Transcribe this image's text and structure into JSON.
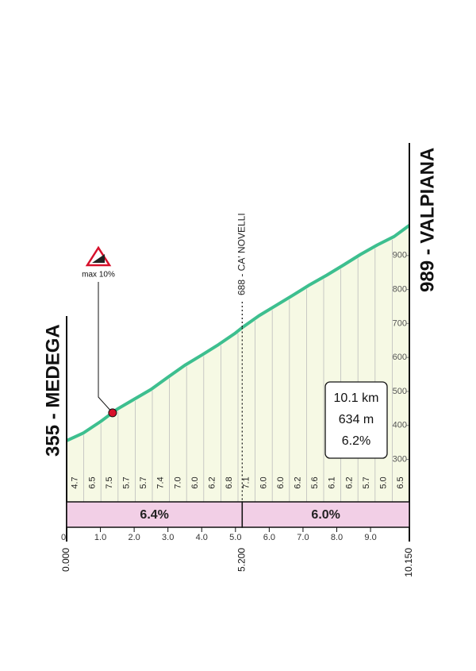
{
  "chart_data": {
    "type": "area",
    "x": [
      0,
      0.5,
      1,
      1.5,
      2,
      2.5,
      3,
      3.5,
      4,
      4.5,
      5,
      5.2,
      5.7,
      6.2,
      6.7,
      7.2,
      7.7,
      8.2,
      8.7,
      9.2,
      9.7,
      10.15
    ],
    "series": [
      {
        "color": "#3dbf8f",
        "values": [
          355,
          378,
          411,
          448,
          477,
          506,
          542,
          577,
          607,
          638,
          672,
          688,
          723,
          753,
          783,
          814,
          842,
          872,
          903,
          931,
          956,
          989
        ]
      }
    ],
    "fill_color": "#f6f9e4",
    "xlim": [
      0,
      10.15
    ],
    "ylim": [
      175,
      1000
    ],
    "xticks": [
      0,
      {
        "value": 1,
        "label": "1.0"
      },
      {
        "value": 2,
        "label": "2.0"
      },
      {
        "value": 3,
        "label": "3.0"
      },
      {
        "value": 4,
        "label": "4.0"
      },
      {
        "value": 5,
        "label": "5.0"
      },
      {
        "value": 6,
        "label": "6.0"
      },
      {
        "value": 7,
        "label": "7.0"
      },
      {
        "value": 8,
        "label": "8.0"
      },
      {
        "value": 9,
        "label": "9.0"
      }
    ],
    "distance_labels": [
      {
        "value": 0,
        "label": "0.000"
      },
      {
        "value": 5.2,
        "label": "5.200"
      },
      {
        "value": 10.15,
        "label": "10.150"
      }
    ],
    "yticks": [
      300,
      400,
      500,
      600,
      700,
      800,
      900
    ],
    "start_label": "355 - MEDEGA",
    "end_label": "989 - VALPIANA",
    "waypoint": {
      "x": 5.2,
      "label": "688 - CA' NOVELLI"
    },
    "max_marker": {
      "x": 1.36,
      "y": 437,
      "label": "max 10%"
    },
    "segment_gradients": [
      "4.7",
      "6.5",
      "7.5",
      "5.7",
      "5.7",
      "7.4",
      "7.0",
      "6.0",
      "6.2",
      "6.8",
      "7.1",
      "6.0",
      "6.0",
      "6.2",
      "5.6",
      "6.1",
      "6.2",
      "5.7",
      "5.0",
      "6.5"
    ],
    "sectors": [
      {
        "start": 0,
        "end": 5.2,
        "label": "6.4%"
      },
      {
        "start": 5.2,
        "end": 10.15,
        "label": "6.0%"
      }
    ],
    "sector_color": "#f2cfe6",
    "summary": [
      "10.1 km",
      "634 m",
      "6.2%"
    ]
  }
}
